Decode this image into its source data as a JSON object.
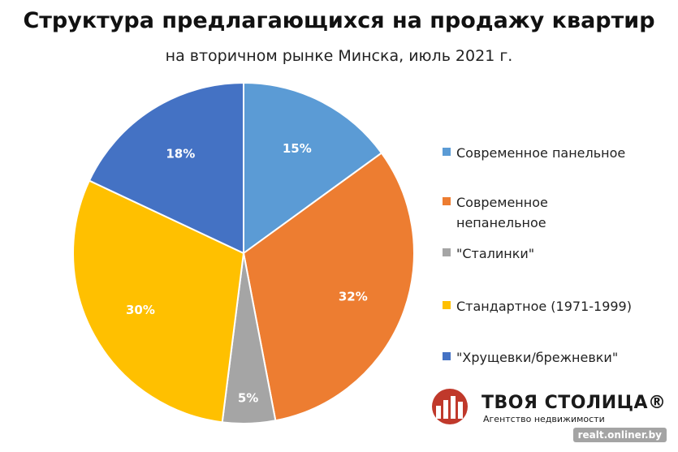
{
  "header": {
    "title": "Структура предлагающихся на продажу квартир",
    "subtitle": "на вторичном рынке Минска, июль 2021 г."
  },
  "chart_data": {
    "type": "pie",
    "categories": [
      "Современное панельное",
      "Современное непанельное",
      "\"Сталинки\"",
      "Стандартное (1971-1999)",
      "\"Хрущевки/брежневки\""
    ],
    "values": [
      15,
      32,
      5,
      30,
      18
    ],
    "data_labels": [
      "15%",
      "32%",
      "5%",
      "30%",
      "18%"
    ],
    "colors": [
      "#5b9bd5",
      "#ed7d31",
      "#a5a5a5",
      "#ffc000",
      "#4472c4"
    ],
    "legend_position": "right",
    "title": "Структура предлагающихся на продажу квартир",
    "subtitle": "на вторичном рынке Минска, июль 2021 г."
  },
  "legend": {
    "items": [
      "Современное панельное",
      "Современное непанельное",
      "\"Сталинки\"",
      "Стандартное (1971-1999)",
      "\"Хрущевки/брежневки\""
    ]
  },
  "brand": {
    "name": "ТВОЯ СТОЛИЦА®",
    "tagline": "Агентство недвижимости",
    "logo_color": "#c0392b"
  },
  "watermark": "realt.onliner.by"
}
